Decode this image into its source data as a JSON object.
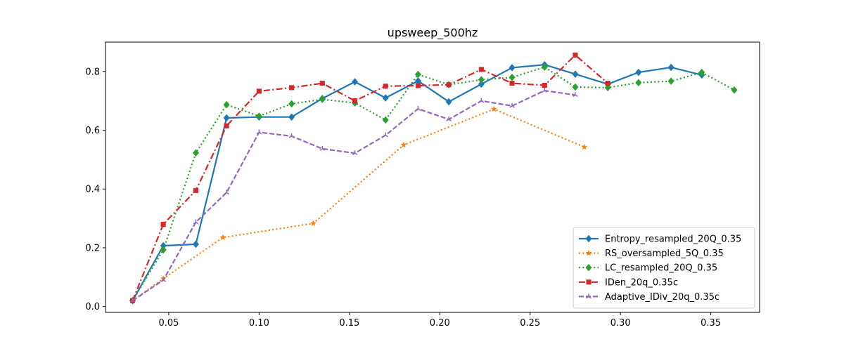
{
  "chart_data": {
    "type": "line",
    "title": "upsweep_500hz",
    "xlabel": "",
    "ylabel": "",
    "xlim": [
      0.015,
      0.377
    ],
    "ylim": [
      -0.02,
      0.9
    ],
    "xticks": [
      0.05,
      0.1,
      0.15,
      0.2,
      0.25,
      0.3,
      0.35
    ],
    "xtick_labels": [
      "0.05",
      "0.10",
      "0.15",
      "0.20",
      "0.25",
      "0.30",
      "0.35"
    ],
    "yticks": [
      0.0,
      0.2,
      0.4,
      0.6,
      0.8
    ],
    "ytick_labels": [
      "0.0",
      "0.2",
      "0.4",
      "0.6",
      "0.8"
    ],
    "grid": false,
    "legend_position": "lower-right",
    "series": [
      {
        "name": "Entropy_resampled_20Q_0.35",
        "color": "#1f77b4",
        "line_style": "solid",
        "marker": "diamond",
        "x": [
          0.03,
          0.047,
          0.065,
          0.082,
          0.1,
          0.118,
          0.135,
          0.153,
          0.17,
          0.188,
          0.205,
          0.223,
          0.24,
          0.258,
          0.275,
          0.293,
          0.31,
          0.328,
          0.345
        ],
        "y": [
          0.02,
          0.207,
          0.212,
          0.642,
          0.645,
          0.645,
          0.708,
          0.765,
          0.71,
          0.768,
          0.697,
          0.757,
          0.813,
          0.823,
          0.791,
          0.757,
          0.797,
          0.814,
          0.788
        ]
      },
      {
        "name": "RS_oversampled_5Q_0.35",
        "color": "#ff7f0e",
        "line_style": "dotted",
        "marker": "star",
        "x": [
          0.03,
          0.047,
          0.08,
          0.13,
          0.18,
          0.23,
          0.28
        ],
        "y": [
          0.02,
          0.095,
          0.235,
          0.283,
          0.55,
          0.672,
          0.543
        ]
      },
      {
        "name": "LC_resampled_20Q_0.35",
        "color": "#2ca02c",
        "line_style": "dotted",
        "marker": "diamond",
        "x": [
          0.03,
          0.047,
          0.065,
          0.082,
          0.1,
          0.118,
          0.135,
          0.153,
          0.17,
          0.188,
          0.205,
          0.223,
          0.24,
          0.258,
          0.275,
          0.293,
          0.31,
          0.328,
          0.345,
          0.363
        ],
        "y": [
          0.02,
          0.193,
          0.523,
          0.687,
          0.648,
          0.69,
          0.705,
          0.693,
          0.635,
          0.79,
          0.755,
          0.772,
          0.78,
          0.815,
          0.747,
          0.745,
          0.762,
          0.767,
          0.797,
          0.737
        ]
      },
      {
        "name": "IDen_20q_0.35c",
        "color": "#d62728",
        "line_style": "dashdot",
        "marker": "square",
        "x": [
          0.03,
          0.047,
          0.065,
          0.082,
          0.1,
          0.118,
          0.135,
          0.153,
          0.17,
          0.188,
          0.205,
          0.223,
          0.24,
          0.258,
          0.275,
          0.293
        ],
        "y": [
          0.02,
          0.28,
          0.395,
          0.615,
          0.733,
          0.745,
          0.76,
          0.7,
          0.75,
          0.752,
          0.755,
          0.807,
          0.76,
          0.753,
          0.856,
          0.76
        ]
      },
      {
        "name": "Adaptive_IDiv_20q_0.35c",
        "color": "#9467bd",
        "line_style": "dashed",
        "marker": "tri",
        "x": [
          0.03,
          0.047,
          0.065,
          0.082,
          0.1,
          0.118,
          0.135,
          0.153,
          0.17,
          0.188,
          0.205,
          0.223,
          0.24,
          0.258,
          0.275
        ],
        "y": [
          0.02,
          0.09,
          0.287,
          0.388,
          0.593,
          0.58,
          0.537,
          0.522,
          0.583,
          0.673,
          0.637,
          0.7,
          0.683,
          0.735,
          0.72
        ]
      }
    ]
  }
}
